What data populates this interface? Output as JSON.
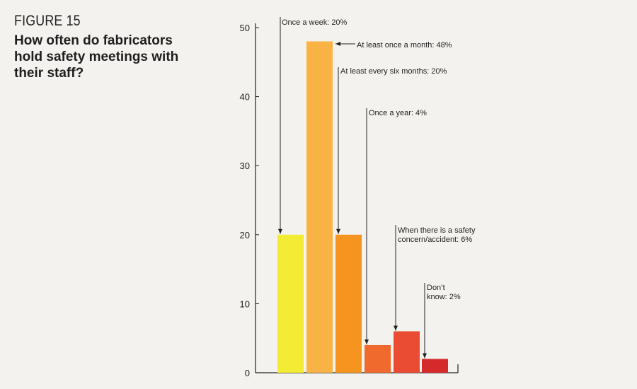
{
  "figure_label": "FIGURE 15",
  "title": "How often do fabricators hold safety meetings with their staff?",
  "colors": {
    "background": "#f3f2ee",
    "bars": [
      "#f4ec34",
      "#f9b244",
      "#f5951f",
      "#ef6a2c",
      "#ea4c33",
      "#d52a2c"
    ]
  },
  "chart_data": {
    "type": "bar",
    "categories": [
      "Once a week",
      "At least once a month",
      "At least every six months",
      "Once a year",
      "When there is a safety concern/accident",
      "Don't know"
    ],
    "values": [
      20,
      48,
      20,
      4,
      6,
      2
    ],
    "ylim": [
      0,
      50
    ],
    "yticks": [
      0,
      10,
      20,
      30,
      40,
      50
    ],
    "grid": false,
    "annotations": [
      [
        "Once a week: 20%"
      ],
      [
        "At least once a month: 48%"
      ],
      [
        "At least every six months: 20%"
      ],
      [
        "Once a year: 4%"
      ],
      [
        "When there is a safety",
        "concern/accident: 6%"
      ],
      [
        "Don’t",
        "know: 2%"
      ]
    ]
  }
}
